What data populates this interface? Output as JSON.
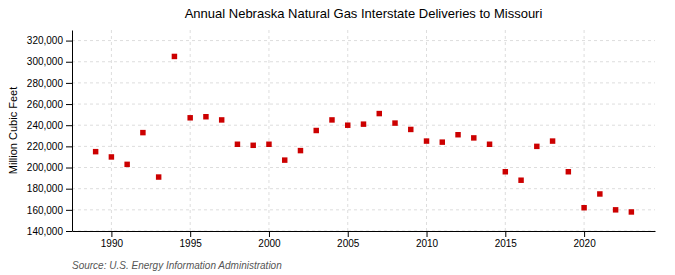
{
  "chart_data": {
    "type": "scatter",
    "title": "Annual Nebraska Natural Gas Interstate Deliveries to Missouri",
    "ylabel": "Million Cubic Feet",
    "source": "Source: U.S. Energy Information Administration",
    "color": "#cc0000",
    "marker": "square",
    "grid": true,
    "xlim": [
      1987.5,
      2024.5
    ],
    "xticks": [
      1990,
      1995,
      2000,
      2005,
      2010,
      2015,
      2020
    ],
    "ylim": [
      140000,
      330000
    ],
    "yticks": [
      {
        "value": 140000,
        "label": "140,000"
      },
      {
        "value": 160000,
        "label": "160,000"
      },
      {
        "value": 180000,
        "label": "180,000"
      },
      {
        "value": 200000,
        "label": "200,000"
      },
      {
        "value": 220000,
        "label": "220,000"
      },
      {
        "value": 240000,
        "label": "240,000"
      },
      {
        "value": 260000,
        "label": "260,000"
      },
      {
        "value": 280000,
        "label": "280,000"
      },
      {
        "value": 300000,
        "label": "300,000"
      },
      {
        "value": 320000,
        "label": "320,000"
      }
    ],
    "x": [
      1989,
      1990,
      1991,
      1992,
      1993,
      1994,
      1995,
      1996,
      1997,
      1998,
      1999,
      2000,
      2001,
      2002,
      2003,
      2004,
      2005,
      2006,
      2007,
      2008,
      2009,
      2010,
      2011,
      2012,
      2013,
      2014,
      2015,
      2016,
      2017,
      2018,
      2019,
      2020,
      2021,
      2022,
      2023
    ],
    "values": [
      215000,
      210000,
      203000,
      233000,
      191000,
      305000,
      247000,
      248000,
      245000,
      222000,
      221000,
      222000,
      207000,
      216000,
      235000,
      245000,
      240000,
      241000,
      251000,
      242000,
      236000,
      225000,
      224000,
      231000,
      228000,
      222000,
      196000,
      188000,
      220000,
      225000,
      196000,
      162000,
      175000,
      160000,
      158000
    ]
  }
}
